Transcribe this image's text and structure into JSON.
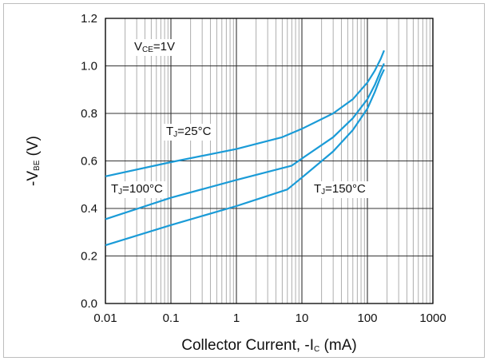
{
  "chart_data": {
    "type": "line",
    "title": "",
    "xlabel": {
      "prefix": "Collector Current, -I",
      "sub": "C",
      "suffix": " (mA)"
    },
    "ylabel": {
      "prefix": "-V",
      "sub": "BE",
      "suffix": " (V)"
    },
    "x_scale": "log",
    "xlim": [
      0.01,
      1000
    ],
    "ylim": [
      0.0,
      1.2
    ],
    "x_ticks": [
      0.01,
      0.1,
      1,
      10,
      100,
      1000
    ],
    "x_tick_labels": [
      "0.01",
      "0.1",
      "1",
      "10",
      "100",
      "1000"
    ],
    "y_ticks": [
      0.0,
      0.2,
      0.4,
      0.6,
      0.8,
      1.0,
      1.2
    ],
    "y_tick_labels": [
      "0.0",
      "0.2",
      "0.4",
      "0.6",
      "0.8",
      "1.0",
      "1.2"
    ],
    "grid": true,
    "line_color": "#1a9bd7",
    "series": [
      {
        "name": "TJ=25°C",
        "label": {
          "prefix": "T",
          "sub": "J",
          "suffix": "=25°C"
        },
        "x": [
          0.01,
          0.1,
          1,
          5,
          10,
          30,
          60,
          100,
          130,
          160,
          180
        ],
        "y": [
          0.535,
          0.595,
          0.65,
          0.7,
          0.735,
          0.8,
          0.86,
          0.93,
          0.98,
          1.03,
          1.065
        ]
      },
      {
        "name": "TJ=100°C",
        "label": {
          "prefix": "T",
          "sub": "J",
          "suffix": "=100°C"
        },
        "x": [
          0.01,
          0.1,
          1,
          7,
          10,
          30,
          60,
          100,
          130,
          160,
          180
        ],
        "y": [
          0.355,
          0.445,
          0.52,
          0.58,
          0.61,
          0.7,
          0.78,
          0.86,
          0.92,
          0.98,
          1.01
        ]
      },
      {
        "name": "TJ=150°C",
        "label": {
          "prefix": "T",
          "sub": "J",
          "suffix": "=150°C"
        },
        "x": [
          0.01,
          0.1,
          1,
          6,
          10,
          30,
          60,
          100,
          130,
          160,
          180
        ],
        "y": [
          0.245,
          0.33,
          0.41,
          0.48,
          0.53,
          0.64,
          0.73,
          0.82,
          0.89,
          0.955,
          0.985
        ]
      }
    ],
    "annotations": [
      {
        "prefix": "V",
        "sub": "CE",
        "suffix": "=1V"
      }
    ]
  }
}
